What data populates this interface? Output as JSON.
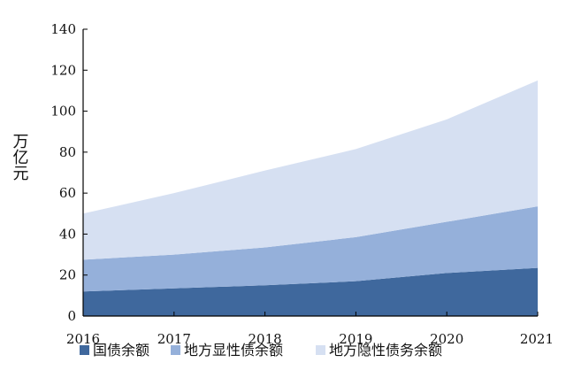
{
  "chart_data": {
    "type": "area",
    "stacked": true,
    "x": [
      "2016",
      "2017",
      "2018",
      "2019",
      "2020",
      "2021"
    ],
    "series": [
      {
        "name": "国债余额",
        "values": [
          12.0,
          13.5,
          15.0,
          17.0,
          21.0,
          23.5
        ],
        "color": "#3f689d"
      },
      {
        "name": "地方显性债余额",
        "values": [
          15.5,
          16.5,
          18.5,
          21.5,
          25.0,
          30.0
        ],
        "color": "#95b0da"
      },
      {
        "name": "地方隐性债务余额",
        "values": [
          22.5,
          30.0,
          37.5,
          43.0,
          50.0,
          61.5
        ],
        "color": "#d6e0f2"
      }
    ],
    "ylabel": "万亿元",
    "ylim": [
      0,
      140
    ],
    "yticks": [
      0,
      20,
      40,
      60,
      80,
      100,
      120,
      140
    ],
    "grid": false,
    "legend": "bottom"
  }
}
